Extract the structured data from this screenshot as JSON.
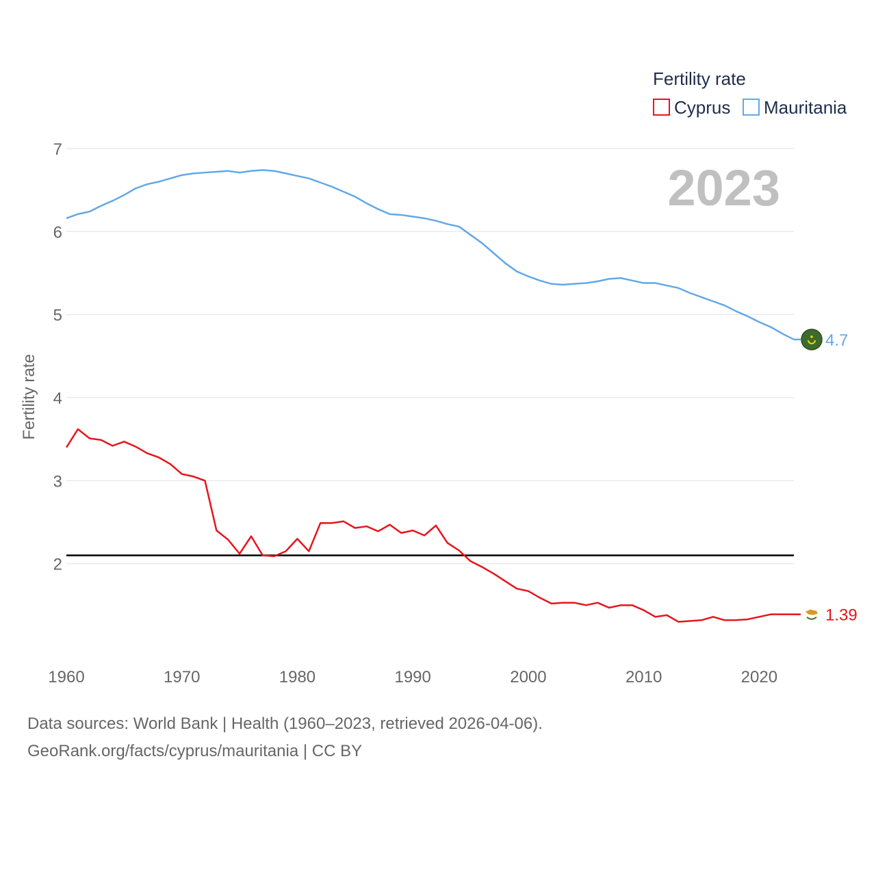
{
  "chart_data": {
    "type": "line",
    "title": "",
    "year_label": "2023",
    "legend_title": "Fertility rate",
    "xlabel": "",
    "ylabel": "Fertility rate",
    "xlim": [
      1960,
      2023
    ],
    "ylim": [
      1,
      7
    ],
    "x_ticks": [
      1960,
      1970,
      1980,
      1990,
      2000,
      2010,
      2020
    ],
    "y_ticks": [
      2,
      3,
      4,
      5,
      6,
      7
    ],
    "reference_line": 2.1,
    "x": [
      1960,
      1961,
      1962,
      1963,
      1964,
      1965,
      1966,
      1967,
      1968,
      1969,
      1970,
      1971,
      1972,
      1973,
      1974,
      1975,
      1976,
      1977,
      1978,
      1979,
      1980,
      1981,
      1982,
      1983,
      1984,
      1985,
      1986,
      1987,
      1988,
      1989,
      1990,
      1991,
      1992,
      1993,
      1994,
      1995,
      1996,
      1997,
      1998,
      1999,
      2000,
      2001,
      2002,
      2003,
      2004,
      2005,
      2006,
      2007,
      2008,
      2009,
      2010,
      2011,
      2012,
      2013,
      2014,
      2015,
      2016,
      2017,
      2018,
      2019,
      2020,
      2021,
      2022,
      2023
    ],
    "series": [
      {
        "name": "Cyprus",
        "color": "#e8141b",
        "end_label": "1.39",
        "flag_icon": "cyprus-flag-icon",
        "values": [
          3.4,
          3.62,
          3.51,
          3.49,
          3.42,
          3.47,
          3.41,
          3.33,
          3.28,
          3.2,
          3.08,
          3.05,
          3.0,
          2.4,
          2.29,
          2.12,
          2.33,
          2.1,
          2.09,
          2.15,
          2.3,
          2.15,
          2.49,
          2.49,
          2.51,
          2.43,
          2.45,
          2.39,
          2.47,
          2.37,
          2.4,
          2.34,
          2.46,
          2.25,
          2.16,
          2.03,
          1.96,
          1.88,
          1.79,
          1.7,
          1.67,
          1.59,
          1.52,
          1.53,
          1.53,
          1.5,
          1.53,
          1.47,
          1.5,
          1.5,
          1.44,
          1.36,
          1.38,
          1.3,
          1.31,
          1.32,
          1.36,
          1.32,
          1.32,
          1.33,
          1.36,
          1.39,
          1.39,
          1.39
        ]
      },
      {
        "name": "Mauritania",
        "color": "#62a8e8",
        "end_label": "4.7",
        "flag_icon": "mauritania-flag-icon",
        "values": [
          6.16,
          6.21,
          6.24,
          6.31,
          6.37,
          6.44,
          6.52,
          6.57,
          6.6,
          6.64,
          6.68,
          6.7,
          6.71,
          6.72,
          6.73,
          6.71,
          6.73,
          6.74,
          6.73,
          6.7,
          6.67,
          6.64,
          6.59,
          6.54,
          6.48,
          6.42,
          6.34,
          6.27,
          6.21,
          6.2,
          6.18,
          6.16,
          6.13,
          6.09,
          6.06,
          5.96,
          5.86,
          5.74,
          5.62,
          5.52,
          5.46,
          5.41,
          5.37,
          5.36,
          5.37,
          5.38,
          5.4,
          5.43,
          5.44,
          5.41,
          5.38,
          5.38,
          5.35,
          5.32,
          5.26,
          5.21,
          5.16,
          5.11,
          5.04,
          4.98,
          4.91,
          4.85,
          4.77,
          4.7
        ]
      }
    ]
  },
  "footer": {
    "line1": "Data sources: World Bank | Health (1960–2023, retrieved 2026-04-06).",
    "line2": "GeoRank.org/facts/cyprus/mauritania | CC BY"
  }
}
